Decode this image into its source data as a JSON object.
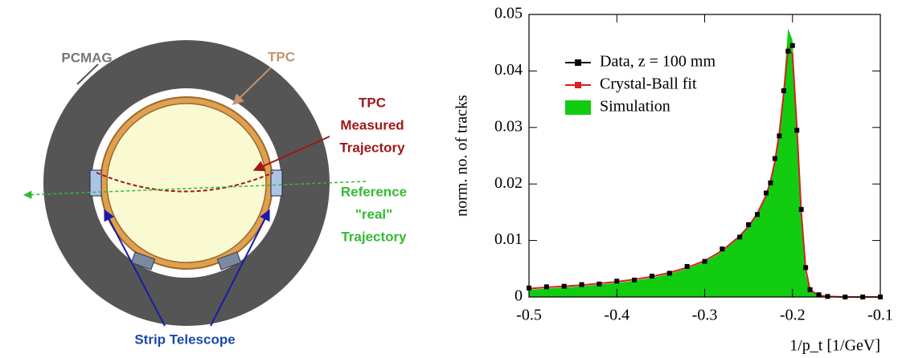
{
  "diagram": {
    "magnet_label": "PCMAG",
    "tpc_label": "TPC",
    "measured_label": [
      "TPC",
      "Measured",
      "Trajectory"
    ],
    "reference_label": [
      "Reference",
      "\"real\"",
      "Trajectory"
    ],
    "telescope_label": "Strip Telescope"
  },
  "chart_data": {
    "type": "line",
    "xlabel": "1/p_t [1/GeV]",
    "ylabel": "norm. no. of tracks",
    "x": [
      -0.5,
      -0.48,
      -0.46,
      -0.44,
      -0.42,
      -0.4,
      -0.38,
      -0.36,
      -0.34,
      -0.32,
      -0.3,
      -0.28,
      -0.26,
      -0.25,
      -0.24,
      -0.23,
      -0.225,
      -0.22,
      -0.215,
      -0.21,
      -0.205,
      -0.2,
      -0.195,
      -0.19,
      -0.185,
      -0.18,
      -0.17,
      -0.16,
      -0.14,
      -0.12,
      -0.1
    ],
    "series": [
      {
        "name": "Data, z = 100 mm",
        "kind": "points",
        "color": "#000000",
        "values": [
          0.0016,
          0.0018,
          0.0019,
          0.0022,
          0.0023,
          0.0028,
          0.003,
          0.0037,
          0.0042,
          0.0054,
          0.0063,
          0.0085,
          0.0106,
          0.0128,
          0.0146,
          0.0184,
          0.0202,
          0.0245,
          0.0285,
          0.0365,
          0.0435,
          0.0445,
          0.0295,
          0.0155,
          0.0052,
          0.0013,
          0.0004,
          0.0001,
          0.0,
          0.0,
          0.0
        ]
      },
      {
        "name": "Crystal-Ball fit",
        "kind": "line",
        "color": "#d62020",
        "values": [
          0.0015,
          0.0017,
          0.0019,
          0.0021,
          0.0024,
          0.0027,
          0.0031,
          0.0036,
          0.0043,
          0.0052,
          0.0064,
          0.0082,
          0.0108,
          0.0125,
          0.0148,
          0.018,
          0.0205,
          0.024,
          0.029,
          0.036,
          0.044,
          0.043,
          0.03,
          0.015,
          0.005,
          0.0012,
          0.0003,
          0.0001,
          0.0,
          0.0,
          0.0
        ]
      },
      {
        "name": "Simulation",
        "kind": "area",
        "color": "#11cc11",
        "values": [
          0.0013,
          0.0015,
          0.0017,
          0.0019,
          0.0022,
          0.0025,
          0.0029,
          0.0034,
          0.0041,
          0.005,
          0.0062,
          0.008,
          0.0106,
          0.0124,
          0.0147,
          0.0182,
          0.0208,
          0.0246,
          0.0298,
          0.0375,
          0.0475,
          0.0455,
          0.031,
          0.014,
          0.004,
          0.001,
          0.0002,
          0.0,
          0.0,
          0.0,
          0.0
        ]
      }
    ],
    "xlim": [
      -0.5,
      -0.1
    ],
    "xticks": [
      -0.5,
      -0.4,
      -0.3,
      -0.2,
      -0.1
    ],
    "ylim": [
      0,
      0.05
    ],
    "yticks": [
      0,
      0.01,
      0.02,
      0.03,
      0.04,
      0.05
    ],
    "legend": "upper left"
  }
}
